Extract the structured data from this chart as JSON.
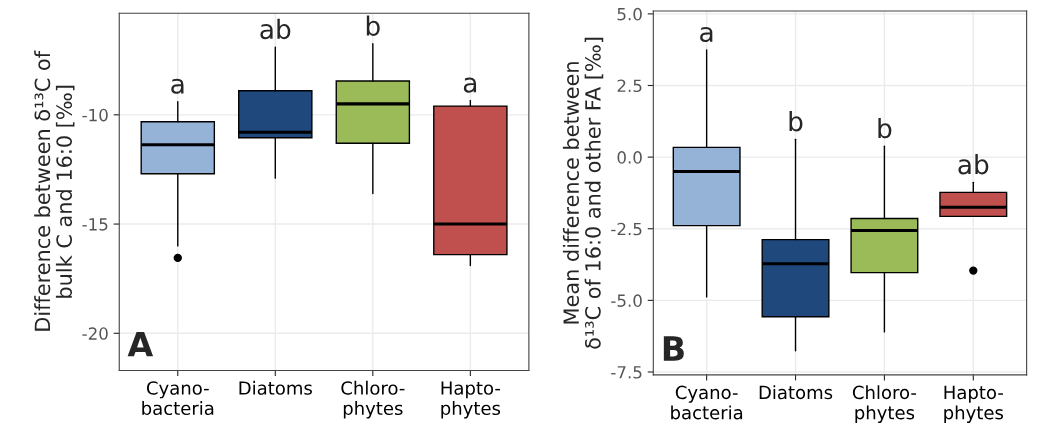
{
  "chart_data": [
    {
      "type": "box",
      "ylabel": "Difference between δ¹³C of\nbulk C and 16:0 [‰]",
      "categories": [
        "Cyano-\nbacteria",
        "Diatoms",
        "Chloro-\nphytes",
        "Hapto-\nphytes"
      ],
      "colors": [
        "#95b3d7",
        "#1f497d",
        "#9bbb59",
        "#c0504d"
      ],
      "boxes": [
        {
          "low": -16.0,
          "q1": -12.7,
          "median": -11.37,
          "q3": -10.32,
          "high": -9.4,
          "outliers": [
            -16.55
          ]
        },
        {
          "low": -12.9,
          "q1": -11.05,
          "median": -10.8,
          "q3": -8.9,
          "high": -6.9
        },
        {
          "low": -13.6,
          "q1": -11.3,
          "median": -9.5,
          "q3": -8.45,
          "high": -6.75
        },
        {
          "low": -16.9,
          "q1": -16.4,
          "median": -15.0,
          "q3": -9.6,
          "high": -9.35
        }
      ],
      "ylim": [
        -21.7,
        -5.35
      ],
      "yticks": [
        -20,
        -15,
        -10
      ],
      "grid": true,
      "annotations": [
        {
          "text": "a",
          "x": "Cyano-\nbacteria",
          "y": -9.4
        },
        {
          "text": "ab",
          "x": "Diatoms",
          "y": -6.9
        },
        {
          "text": "b",
          "x": "Chloro-\nphytes",
          "y": -6.75
        },
        {
          "text": "a",
          "x": "Hapto-\nphytes",
          "y": -9.35
        },
        "A"
      ]
    },
    {
      "type": "box",
      "ylabel": "Mean difference between\nδ¹³C of 16:0 and other FA [‰]",
      "categories": [
        "Cyano-\nbacteria",
        "Diatoms",
        "Chloro-\nphytes",
        "Hapto-\nphytes"
      ],
      "colors": [
        "#95b3d7",
        "#1f497d",
        "#9bbb59",
        "#c0504d"
      ],
      "boxes": [
        {
          "low": -4.88,
          "q1": -2.39,
          "median": -0.5,
          "q3": 0.34,
          "high": 3.74
        },
        {
          "low": -6.76,
          "q1": -5.57,
          "median": -3.72,
          "q3": -2.88,
          "high": 0.62
        },
        {
          "low": -6.1,
          "q1": -4.03,
          "median": -2.56,
          "q3": -2.14,
          "high": 0.38
        },
        {
          "low": -2.07,
          "q1": -2.07,
          "median": -1.75,
          "q3": -1.23,
          "high": -0.88,
          "outliers": [
            -3.96
          ]
        }
      ],
      "ylim": [
        -7.6,
        5.1
      ],
      "yticks": [
        {
          "value": -7.5,
          "label": "-7.5"
        },
        {
          "value": -5,
          "label": "-5.0"
        },
        {
          "value": -2.5,
          "label": "-2.5"
        },
        {
          "value": 0,
          "label": "0.0"
        },
        {
          "value": 2.5,
          "label": "2.5"
        },
        {
          "value": 5,
          "label": "5.0"
        }
      ],
      "grid": true,
      "annotations": [
        {
          "text": "a",
          "x": "Cyano-\nbacteria",
          "y": 3.74
        },
        {
          "text": "b",
          "x": "Diatoms",
          "y": 0.62
        },
        {
          "text": "b",
          "x": "Chloro-\nphytes",
          "y": 0.38
        },
        {
          "text": "ab",
          "x": "Hapto-\nphytes",
          "y": -0.88
        },
        "B"
      ]
    }
  ]
}
